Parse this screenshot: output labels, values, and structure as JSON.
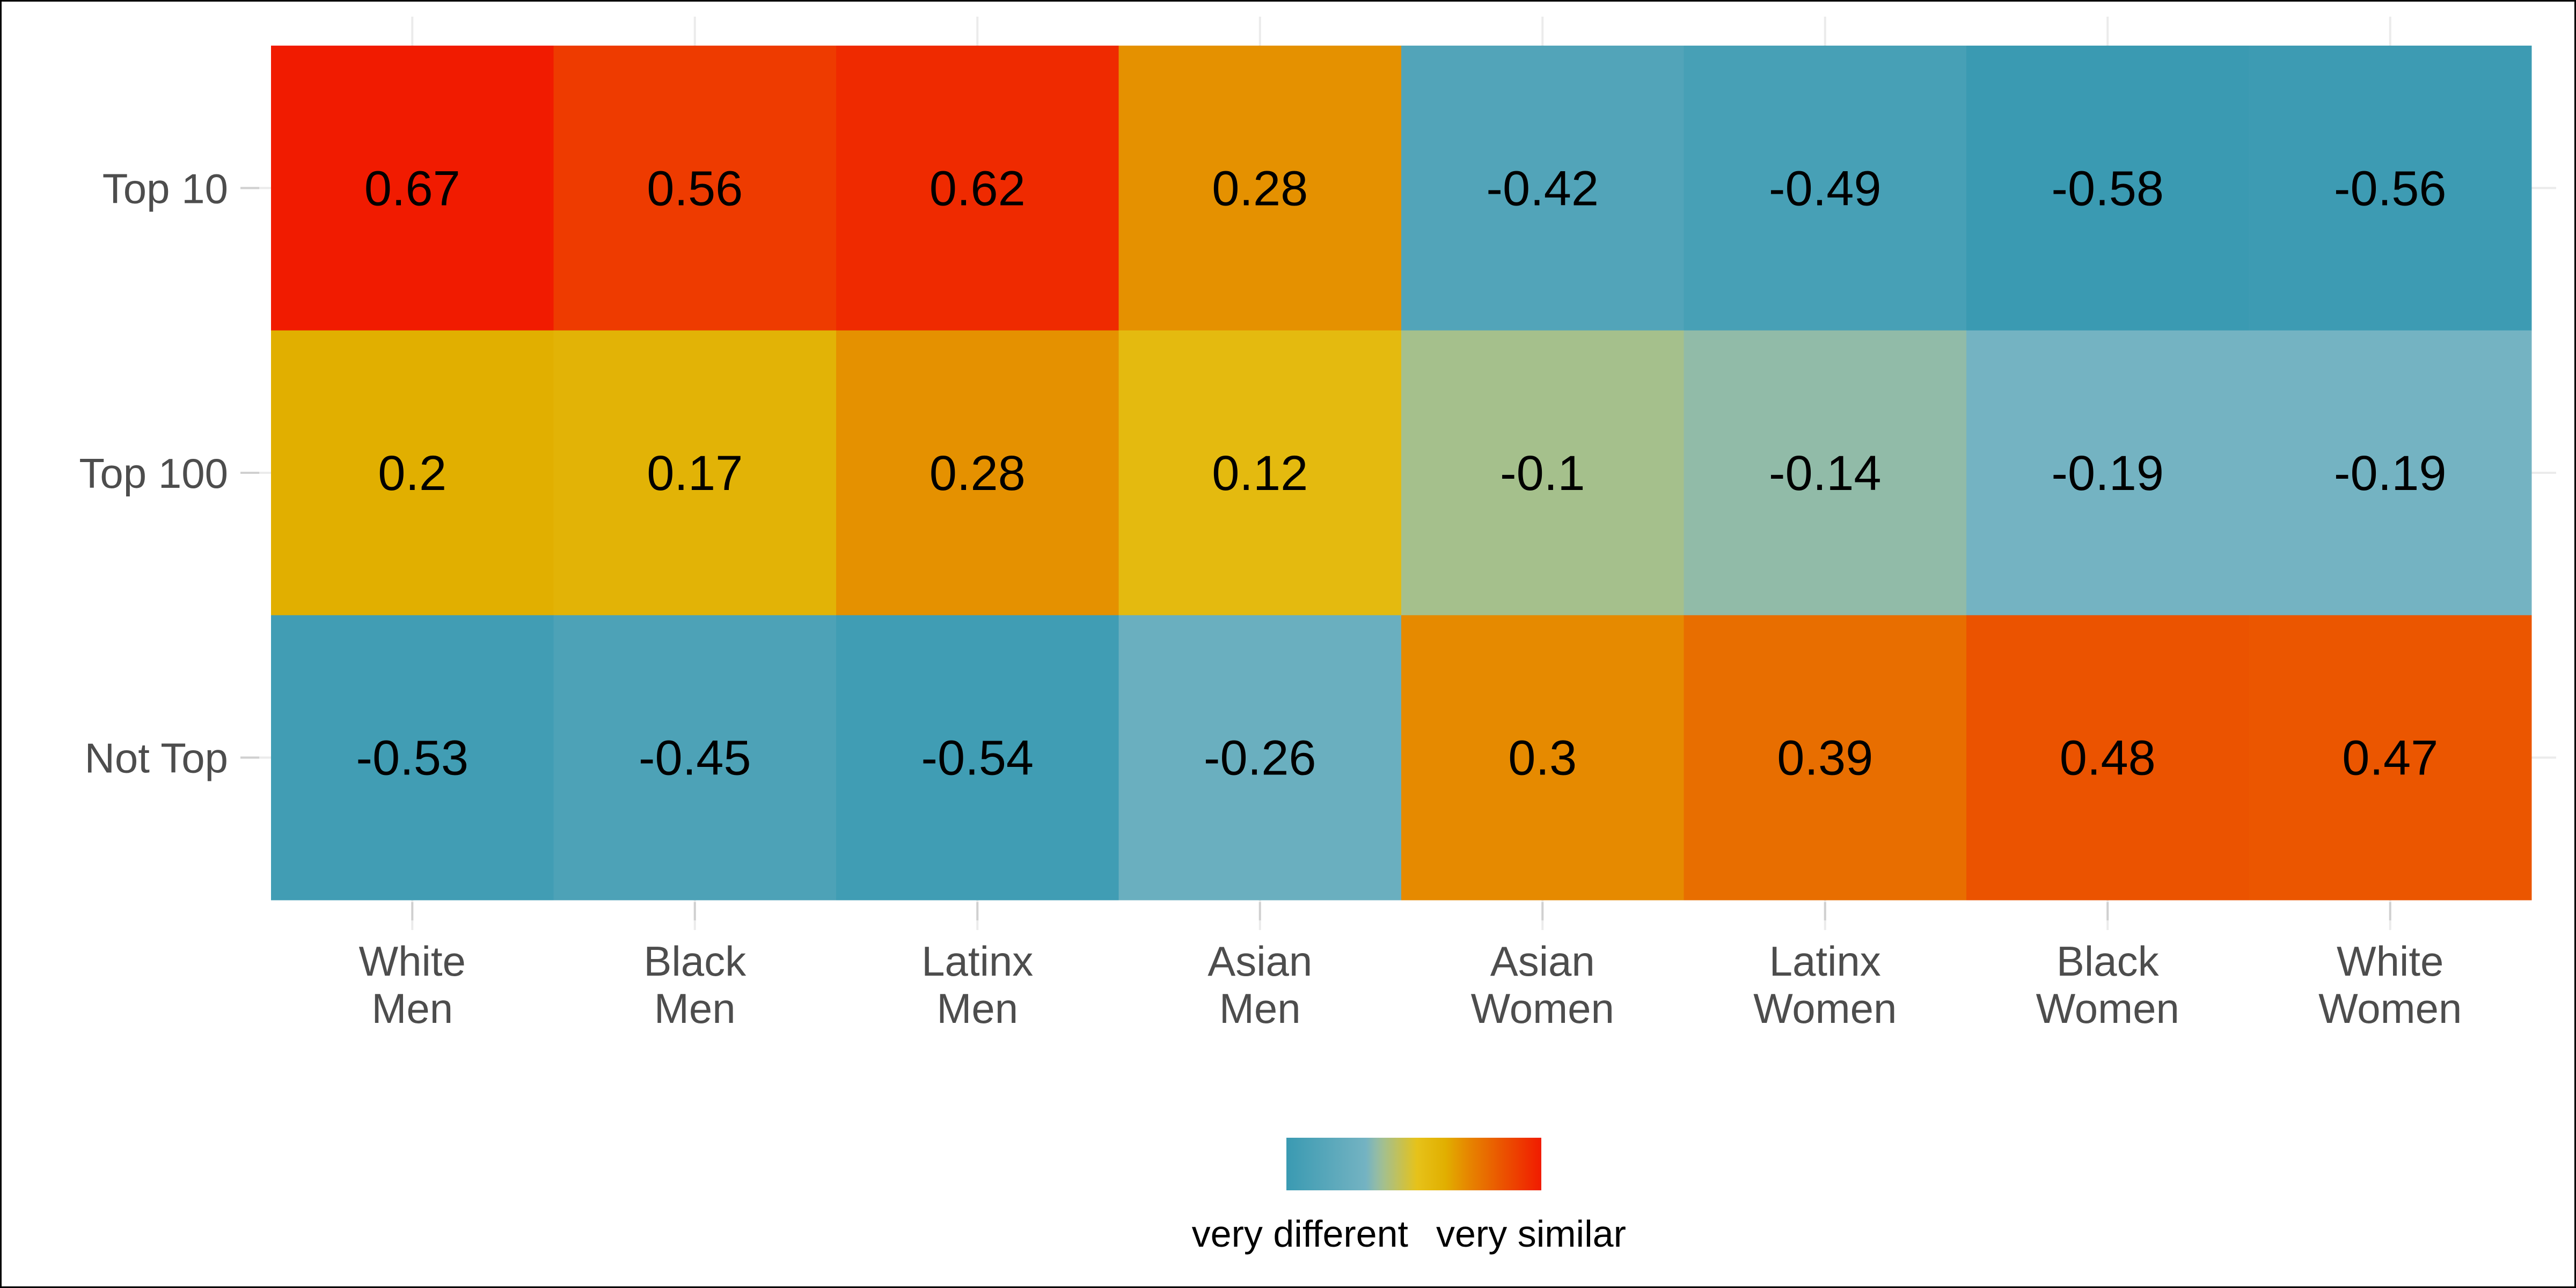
{
  "chart_data": {
    "type": "heatmap",
    "title": "",
    "xlabel": "",
    "ylabel": "",
    "x_categories": [
      [
        "White",
        "Men"
      ],
      [
        "Black",
        "Men"
      ],
      [
        "Latinx",
        "Men"
      ],
      [
        "Asian",
        "Men"
      ],
      [
        "Asian",
        "Women"
      ],
      [
        "Latinx",
        "Women"
      ],
      [
        "Black",
        "Women"
      ],
      [
        "White",
        "Women"
      ]
    ],
    "y_categories": [
      "Top 10",
      "Top 100",
      "Not Top"
    ],
    "values": [
      [
        0.67,
        0.56,
        0.62,
        0.28,
        -0.42,
        -0.49,
        -0.58,
        -0.56
      ],
      [
        0.2,
        0.17,
        0.28,
        0.12,
        -0.1,
        -0.14,
        -0.19,
        -0.19
      ],
      [
        -0.53,
        -0.45,
        -0.54,
        -0.26,
        0.3,
        0.39,
        0.48,
        0.47
      ]
    ],
    "value_range": [
      -0.58,
      0.67
    ],
    "color_scale": {
      "stops": [
        {
          "value": -0.58,
          "color": "#3a9ab2"
        },
        {
          "value": -0.19,
          "color": "#74b3c2"
        },
        {
          "value": -0.14,
          "color": "#91bba8"
        },
        {
          "value": -0.1,
          "color": "#a5c08c"
        },
        {
          "value": 0.06,
          "color": "#e6c21a"
        },
        {
          "value": 0.2,
          "color": "#e1af00"
        },
        {
          "value": 0.3,
          "color": "#e68a00"
        },
        {
          "value": 0.45,
          "color": "#ea5c00"
        },
        {
          "value": 0.67,
          "color": "#f11b00"
        }
      ]
    },
    "grid": true,
    "legend": {
      "position": "bottom",
      "low_label": "very different",
      "high_label": "very similar"
    }
  }
}
